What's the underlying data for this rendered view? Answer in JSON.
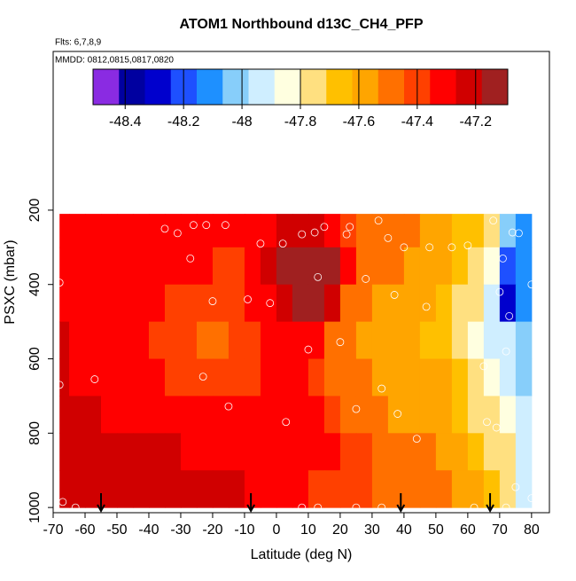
{
  "chart_data": {
    "type": "heatmap",
    "title": "ATOM1 Northbound d13C_CH4_PFP",
    "subtitle": "Flts: 6,7,8,9",
    "annotation": "MMDD: 0812,0815,0817,0820",
    "x_label": "Latitude (deg N)",
    "y_label": "PSXC (mbar)",
    "xlim": [
      -70,
      85.6
    ],
    "ylim": [
      1014,
      -227
    ],
    "xticks": [
      -70,
      -60,
      -50,
      -40,
      -30,
      -20,
      -10,
      0,
      10,
      20,
      30,
      40,
      50,
      60,
      70,
      80
    ],
    "yticks": [
      200,
      400,
      600,
      800,
      1000
    ],
    "zlim": [
      -48.51,
      -47.09
    ],
    "zticks": [
      -48.4,
      -48.2,
      -48.0,
      -47.8,
      -47.6,
      -47.4,
      -47.2
    ],
    "colors": [
      "#8a2be2",
      "#0000a0",
      "#0000cd",
      "#1e50ff",
      "#1e90ff",
      "#87cefa",
      "#cfeeff",
      "#ffffe0",
      "#ffe080",
      "#ffc000",
      "#ffa500",
      "#ff7000",
      "#ff4000",
      "#ff0000",
      "#d00000",
      "#a02020"
    ],
    "x_bins": [
      -68,
      -65,
      -60,
      -55,
      -50,
      -45,
      -40,
      -35,
      -30,
      -25,
      -20,
      -15,
      -10,
      -5,
      0,
      5,
      10,
      15,
      20,
      25,
      30,
      35,
      40,
      45,
      50,
      55,
      60,
      65,
      70,
      75,
      80
    ],
    "y_bins": [
      210,
      300,
      400,
      500,
      600,
      700,
      800,
      900,
      1000
    ],
    "z": [
      [
        -47.3,
        -47.3,
        -47.3,
        -47.3,
        -47.3,
        -47.3,
        -47.3,
        -47.3,
        -47.3,
        -47.32,
        -47.35,
        -47.35,
        -47.3,
        -47.3,
        -47.25,
        -47.22,
        -47.25,
        -47.3,
        -47.4,
        -47.45,
        -47.5,
        -47.5,
        -47.52,
        -47.55,
        -47.6,
        -47.65,
        -47.7,
        -47.8,
        -48.0,
        -48.1
      ],
      [
        -47.3,
        -47.3,
        -47.28,
        -47.3,
        -47.3,
        -47.32,
        -47.3,
        -47.3,
        -47.33,
        -47.35,
        -47.4,
        -47.38,
        -47.3,
        -47.25,
        -47.15,
        -47.1,
        -47.08,
        -47.15,
        -47.35,
        -47.45,
        -47.5,
        -47.52,
        -47.55,
        -47.58,
        -47.6,
        -47.65,
        -47.72,
        -47.85,
        -48.2,
        -48.15
      ],
      [
        -47.28,
        -47.3,
        -47.3,
        -47.3,
        -47.32,
        -47.35,
        -47.35,
        -47.38,
        -47.4,
        -47.42,
        -47.42,
        -47.4,
        -47.35,
        -47.3,
        -47.2,
        -47.12,
        -47.15,
        -47.25,
        -47.45,
        -47.5,
        -47.55,
        -47.6,
        -47.6,
        -47.62,
        -47.68,
        -47.75,
        -47.8,
        -47.95,
        -48.3,
        -48.1
      ],
      [
        -47.25,
        -47.28,
        -47.3,
        -47.3,
        -47.32,
        -47.35,
        -47.38,
        -47.4,
        -47.4,
        -47.45,
        -47.45,
        -47.42,
        -47.38,
        -47.35,
        -47.3,
        -47.28,
        -47.35,
        -47.45,
        -47.52,
        -47.55,
        -47.58,
        -47.6,
        -47.62,
        -47.65,
        -47.7,
        -47.78,
        -47.85,
        -47.9,
        -47.95,
        -48.05
      ],
      [
        -47.25,
        -47.28,
        -47.3,
        -47.3,
        -47.32,
        -47.32,
        -47.35,
        -47.38,
        -47.4,
        -47.42,
        -47.42,
        -47.4,
        -47.38,
        -47.35,
        -47.32,
        -47.3,
        -47.38,
        -47.45,
        -47.5,
        -47.52,
        -47.55,
        -47.55,
        -47.58,
        -47.6,
        -47.62,
        -47.68,
        -47.75,
        -47.82,
        -47.9,
        -48.0
      ],
      [
        -47.22,
        -47.25,
        -47.25,
        -47.28,
        -47.28,
        -47.3,
        -47.3,
        -47.32,
        -47.35,
        -47.35,
        -47.35,
        -47.35,
        -47.35,
        -47.35,
        -47.32,
        -47.32,
        -47.35,
        -47.4,
        -47.45,
        -47.5,
        -47.52,
        -47.55,
        -47.55,
        -47.58,
        -47.6,
        -47.65,
        -47.72,
        -47.78,
        -47.85,
        -47.95
      ],
      [
        -47.2,
        -47.22,
        -47.22,
        -47.25,
        -47.25,
        -47.25,
        -47.25,
        -47.25,
        -47.28,
        -47.28,
        -47.28,
        -47.3,
        -47.3,
        -47.3,
        -47.3,
        -47.3,
        -47.32,
        -47.35,
        -47.4,
        -47.42,
        -47.45,
        -47.48,
        -47.5,
        -47.52,
        -47.55,
        -47.6,
        -47.65,
        -47.72,
        -47.8,
        -47.95
      ],
      [
        -47.2,
        -47.2,
        -47.2,
        -47.22,
        -47.22,
        -47.22,
        -47.22,
        -47.22,
        -47.22,
        -47.25,
        -47.25,
        -47.25,
        -47.28,
        -47.3,
        -47.32,
        -47.35,
        -47.38,
        -47.4,
        -47.4,
        -47.42,
        -47.45,
        -47.45,
        -47.48,
        -47.5,
        -47.52,
        -47.55,
        -47.6,
        -47.68,
        -47.75,
        -47.9
      ]
    ],
    "points": {
      "x": [
        -68,
        -68,
        -67,
        -63,
        -57,
        -35,
        -31,
        -27,
        -26,
        -22,
        -20,
        -23,
        -16,
        -15,
        -9,
        -5,
        -2,
        2,
        3,
        8,
        8,
        10,
        12,
        13,
        13,
        15,
        20,
        22,
        23,
        25,
        25,
        28,
        32,
        33,
        33,
        35,
        37,
        38,
        40,
        44,
        47,
        48,
        55,
        60,
        62,
        65,
        66,
        68,
        69,
        70,
        71,
        72,
        72,
        73,
        74,
        75,
        76,
        80,
        80
      ],
      "y": [
        395,
        670,
        985,
        1000,
        655,
        250,
        262,
        330,
        240,
        240,
        445,
        648,
        240,
        728,
        440,
        290,
        450,
        290,
        770,
        265,
        1000,
        575,
        260,
        380,
        1000,
        245,
        555,
        265,
        245,
        735,
        1000,
        385,
        228,
        680,
        1000,
        275,
        428,
        748,
        300,
        815,
        460,
        300,
        300,
        295,
        1000,
        620,
        770,
        228,
        785,
        420,
        330,
        580,
        1000,
        485,
        260,
        945,
        262,
        400,
        975
      ]
    },
    "arrows": [
      -55,
      -8,
      39,
      67
    ]
  }
}
